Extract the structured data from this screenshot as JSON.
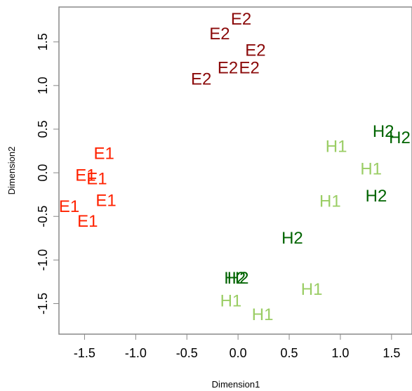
{
  "chart_data": {
    "type": "scatter",
    "title": "",
    "xlabel": "Dimension1",
    "ylabel": "Dimension2",
    "xlim": [
      -1.75,
      1.7
    ],
    "ylim": [
      -1.85,
      1.9
    ],
    "xticks": [
      -1.5,
      -1.0,
      -0.5,
      0.0,
      0.5,
      1.0,
      1.5
    ],
    "xtick_labels": [
      "-1.5",
      "-1.0",
      "-0.5",
      "0.0",
      "0.5",
      "1.0",
      "1.5"
    ],
    "yticks": [
      -1.5,
      -1.0,
      -0.5,
      0.0,
      0.5,
      1.0,
      1.5
    ],
    "ytick_labels": [
      "-1.5",
      "-1.0",
      "-0.5",
      "0.0",
      "0.5",
      "1.0",
      "1.5"
    ],
    "grid": false,
    "legend": "none",
    "series": [
      {
        "group": "E1",
        "color": "#ff2200",
        "points": [
          {
            "x": -1.31,
            "y": 0.22,
            "label": "E1"
          },
          {
            "x": -1.49,
            "y": -0.03,
            "label": "E1"
          },
          {
            "x": -1.38,
            "y": -0.07,
            "label": "E1"
          },
          {
            "x": -1.29,
            "y": -0.32,
            "label": "E1"
          },
          {
            "x": -1.65,
            "y": -0.39,
            "label": "E1"
          },
          {
            "x": -1.47,
            "y": -0.56,
            "label": "E1"
          }
        ]
      },
      {
        "group": "E2",
        "color": "#8b0a0a",
        "points": [
          {
            "x": 0.03,
            "y": 1.76,
            "label": "E2"
          },
          {
            "x": -0.18,
            "y": 1.59,
            "label": "E2"
          },
          {
            "x": 0.17,
            "y": 1.4,
            "label": "E2"
          },
          {
            "x": -0.1,
            "y": 1.2,
            "label": "E2"
          },
          {
            "x": 0.11,
            "y": 1.2,
            "label": "E2"
          },
          {
            "x": -0.36,
            "y": 1.07,
            "label": "E2"
          }
        ]
      },
      {
        "group": "H1",
        "color": "#9acd64",
        "points": [
          {
            "x": 0.96,
            "y": 0.3,
            "label": "H1"
          },
          {
            "x": 1.3,
            "y": 0.04,
            "label": "H1"
          },
          {
            "x": 0.9,
            "y": -0.33,
            "label": "H1"
          },
          {
            "x": 0.72,
            "y": -1.34,
            "label": "H1"
          },
          {
            "x": -0.07,
            "y": -1.47,
            "label": "H1"
          },
          {
            "x": 0.24,
            "y": -1.63,
            "label": "H1"
          }
        ]
      },
      {
        "group": "H2",
        "color": "#006400",
        "points": [
          {
            "x": 1.42,
            "y": 0.47,
            "label": "H2"
          },
          {
            "x": 1.58,
            "y": 0.4,
            "label": "H2"
          },
          {
            "x": 1.35,
            "y": -0.27,
            "label": "H2"
          },
          {
            "x": 0.53,
            "y": -0.75,
            "label": "H2"
          },
          {
            "x": -0.03,
            "y": -1.21,
            "label": "H2"
          },
          {
            "x": 0.0,
            "y": -1.21,
            "label": "H2"
          }
        ]
      }
    ]
  }
}
